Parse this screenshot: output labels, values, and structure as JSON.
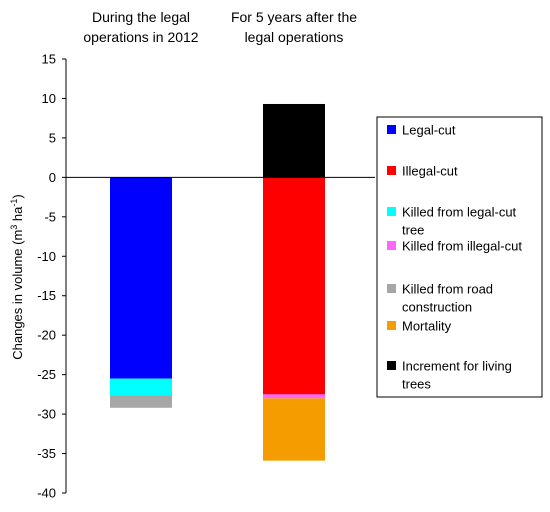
{
  "chart_data": {
    "type": "bar",
    "stacked": true,
    "column_titles": [
      [
        "During the legal",
        "operations in 2012"
      ],
      [
        "For 5 years after the",
        "legal operations"
      ]
    ],
    "ylabel_main": "Changes in volume (m",
    "ylabel_sup": "3",
    "ylabel_mid": " ha",
    "ylabel_sup2": "-1",
    "ylabel_end": ")",
    "ylim": [
      -40,
      15
    ],
    "ytick_step": 5,
    "grid": false,
    "legend_position": "right",
    "legend": [
      {
        "label": [
          "Legal-cut"
        ],
        "color": "#0000ff"
      },
      {
        "label": [
          "Illegal-cut"
        ],
        "color": "#ff0000"
      },
      {
        "label": [
          "Killed from legal-cut",
          "tree"
        ],
        "color": "#00ffff"
      },
      {
        "label": [
          "Killed from illegal-cut"
        ],
        "color": "#ff66ff"
      },
      {
        "label": [
          "Killed from road",
          "construction"
        ],
        "color": "#a6a6a6"
      },
      {
        "label": [
          "Mortality"
        ],
        "color": "#f59c00"
      },
      {
        "label": [
          "Increment for living",
          "trees"
        ],
        "color": "#000000"
      }
    ],
    "bars": [
      {
        "segments": [
          {
            "series": "Legal-cut",
            "from": 0,
            "to": -25.5,
            "color": "#0000ff"
          },
          {
            "series": "Killed from legal-cut tree",
            "from": -25.5,
            "to": -27.6,
            "color": "#00ffff"
          },
          {
            "series": "Killed from road construction",
            "from": -27.6,
            "to": -29.2,
            "color": "#a6a6a6"
          }
        ]
      },
      {
        "segments": [
          {
            "series": "Increment for living trees",
            "from": 0,
            "to": 9.3,
            "color": "#000000"
          },
          {
            "series": "Illegal-cut",
            "from": 0,
            "to": -27.5,
            "color": "#ff0000"
          },
          {
            "series": "Killed from illegal-cut",
            "from": -27.5,
            "to": -28.0,
            "color": "#ff66ff"
          },
          {
            "series": "Mortality",
            "from": -28.0,
            "to": -35.9,
            "color": "#f59c00"
          }
        ]
      }
    ]
  }
}
